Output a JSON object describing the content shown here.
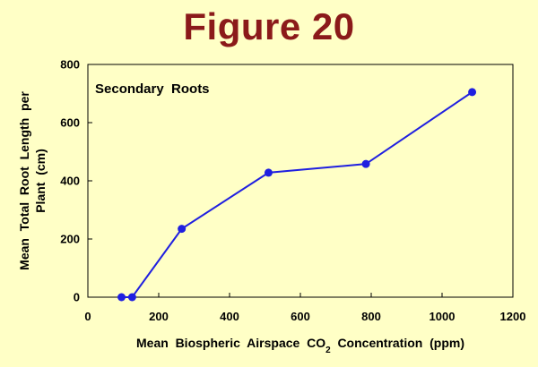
{
  "slide": {
    "title": "Figure 20"
  },
  "colors": {
    "background": "#ffffc6",
    "title": "#8b1a1a",
    "series": "#1f1fe0"
  },
  "chart_data": {
    "type": "line",
    "title": "",
    "annotation": "Secondary  Roots",
    "xlabel": "Mean  Biospheric  Airspace  CO",
    "xlabel_subscript": "2",
    "xlabel_suffix": "  Concentration  (ppm)",
    "ylabel_line1": "Mean  Total  Root  Length  per",
    "ylabel_line2": "Plant  (cm)",
    "xlim": [
      0,
      1200
    ],
    "ylim": [
      0,
      800
    ],
    "xticks": [
      0,
      200,
      400,
      600,
      800,
      1000,
      1200
    ],
    "yticks": [
      0,
      200,
      400,
      600,
      800
    ],
    "grid": false,
    "series": [
      {
        "x": [
          95,
          125,
          265,
          510,
          785,
          1085
        ],
        "y": [
          0,
          0,
          235,
          428,
          458,
          705
        ]
      }
    ]
  }
}
